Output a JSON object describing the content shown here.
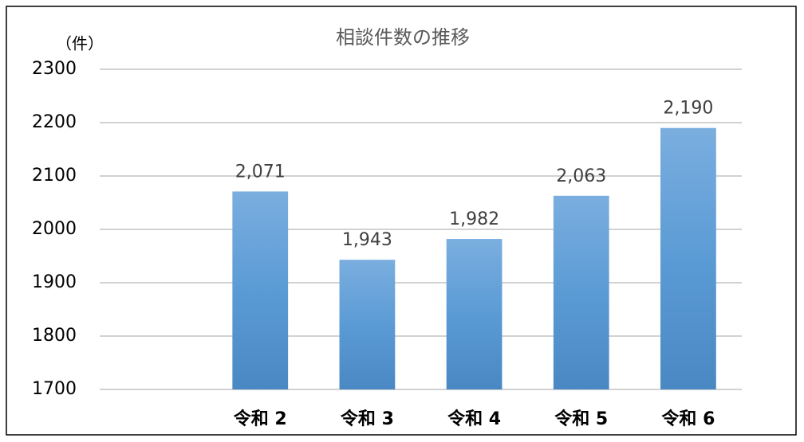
{
  "chart_data": {
    "type": "bar",
    "title": "相談件数の推移",
    "y_label": "（件）",
    "categories": [
      null,
      "令和 2",
      "令和 3",
      "令和 4",
      "令和 5",
      "令和 6"
    ],
    "values": [
      null,
      2071,
      1943,
      1982,
      2063,
      2190
    ],
    "value_labels": [
      null,
      "2,071",
      "1,943",
      "1,982",
      "2,063",
      "2,190"
    ],
    "color": "#5b9bd5",
    "ylim": [
      1700,
      2300
    ],
    "yticks": [
      1700,
      1800,
      1900,
      2000,
      2100,
      2200,
      2300
    ],
    "grid": true
  }
}
